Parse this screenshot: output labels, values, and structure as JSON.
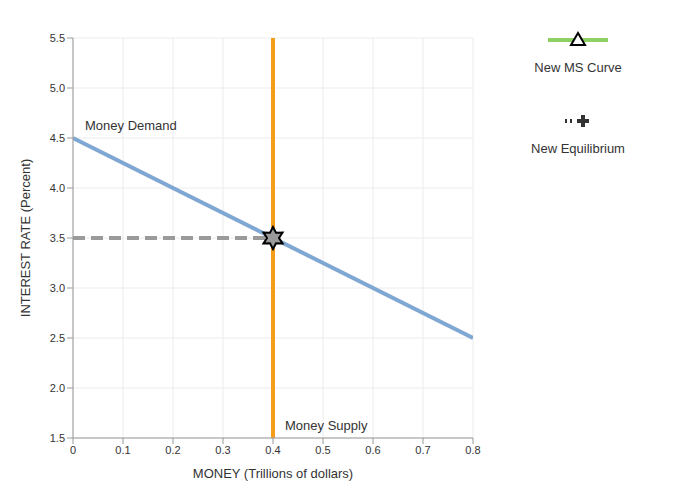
{
  "chart_data": {
    "type": "line",
    "xlabel": "MONEY (Trillions of dollars)",
    "ylabel": "INTEREST RATE (Percent)",
    "xlim": [
      0,
      0.8
    ],
    "xticks": [
      0,
      0.1,
      0.2,
      0.3,
      0.4,
      0.5,
      0.6,
      0.7,
      0.8
    ],
    "ylim": [
      1.5,
      5.5
    ],
    "yticks": [
      1.5,
      {
        "value": 2,
        "label": "2.0"
      },
      2.5,
      {
        "value": 3,
        "label": "3.0"
      },
      3.5,
      {
        "value": 4,
        "label": "4.0"
      },
      4.5,
      {
        "value": 5,
        "label": "5.0"
      },
      5.5
    ],
    "grid": true,
    "legend": "right",
    "series": [
      {
        "name": "Money Demand",
        "color": "#7ea8d3",
        "x": [
          0,
          0.8
        ],
        "values": [
          4.5,
          2.5
        ]
      },
      {
        "name": "Money Supply",
        "color": "#f59e1b",
        "x": [
          0.4,
          0.4
        ],
        "values": [
          1.5,
          5.5
        ]
      },
      {
        "name": "New MS Curve",
        "color": "#8ed162",
        "marker": "triangle",
        "x": [],
        "values": []
      },
      {
        "name": "New Equilibrium",
        "color": "#333333",
        "marker": "cross",
        "line_style": "dotted",
        "x": [],
        "values": []
      }
    ],
    "equilibrium": {
      "x": 0.4,
      "y": 3.5,
      "marker": "star",
      "color": "#9a9a9a",
      "line_style": "dashed"
    }
  }
}
